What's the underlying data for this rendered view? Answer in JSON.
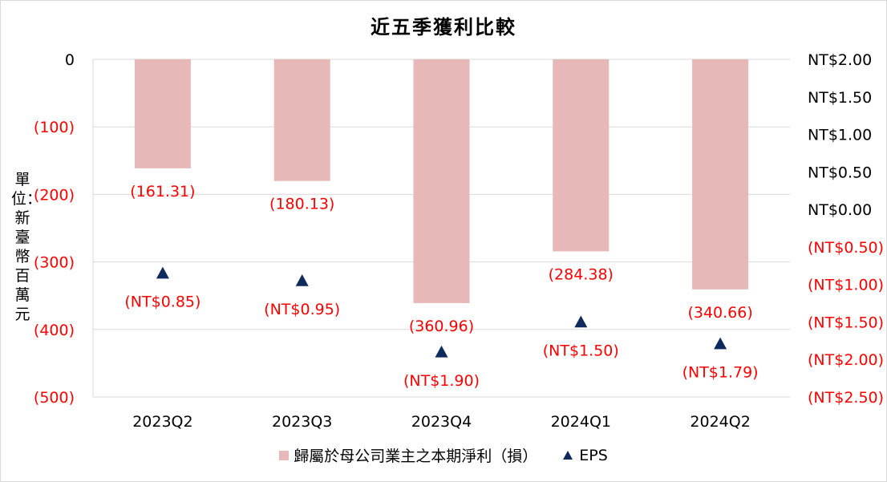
{
  "chart_data": {
    "type": "bar",
    "title": "近五季獲利比較",
    "y_unit_label": "單位：新臺幣百萬元",
    "categories": [
      "2023Q2",
      "2023Q3",
      "2023Q4",
      "2024Q1",
      "2024Q2"
    ],
    "series": [
      {
        "name": "歸屬於母公司業主之本期淨利（損）",
        "type": "bar",
        "axis": "left",
        "color": "#e6b8b7",
        "values": [
          -161.31,
          -180.13,
          -360.96,
          -284.38,
          -340.66
        ],
        "labels": [
          "(161.31)",
          "(180.13)",
          "(360.96)",
          "(284.38)",
          "(340.66)"
        ]
      },
      {
        "name": "EPS",
        "type": "scatter",
        "marker": "triangle",
        "axis": "right",
        "color": "#0f2a5c",
        "values": [
          -0.85,
          -0.95,
          -1.9,
          -1.5,
          -1.79
        ],
        "labels": [
          "(NT$0.85)",
          "(NT$0.95)",
          "(NT$1.90)",
          "(NT$1.50)",
          "(NT$1.79)"
        ]
      }
    ],
    "y_left": {
      "range": [
        -500,
        0
      ],
      "ticks": [
        0,
        -100,
        -200,
        -300,
        -400,
        -500
      ],
      "tick_labels": [
        "0",
        "(100)",
        "(200)",
        "(300)",
        "(400)",
        "(500)"
      ]
    },
    "y_right": {
      "range": [
        -2.5,
        2.0
      ],
      "ticks": [
        2.0,
        1.5,
        1.0,
        0.5,
        0.0,
        -0.5,
        -1.0,
        -1.5,
        -2.0,
        -2.5
      ],
      "tick_labels": [
        "NT$2.00",
        "NT$1.50",
        "NT$1.00",
        "NT$0.50",
        "NT$0.00",
        "(NT$0.50)",
        "(NT$1.00)",
        "(NT$1.50)",
        "(NT$2.00)",
        "(NT$2.50)"
      ]
    },
    "grid": true,
    "legend_position": "bottom",
    "colors": {
      "negative_text": "#ff0000",
      "positive_text": "#000000",
      "grid": "#d9d9d9"
    }
  }
}
